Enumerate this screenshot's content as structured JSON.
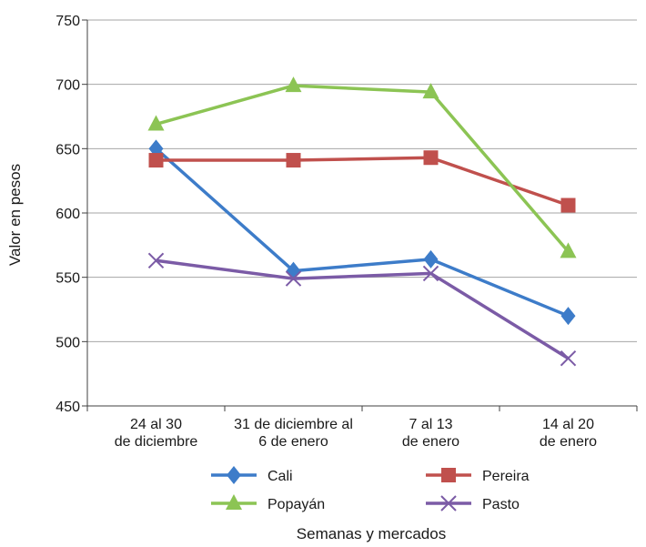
{
  "chart_data": {
    "type": "line",
    "title": "",
    "xlabel": "Semanas y mercados",
    "ylabel": "Valor en pesos",
    "ylim": [
      450,
      750
    ],
    "yticks": [
      "450",
      "500",
      "550",
      "600",
      "650",
      "700",
      "750"
    ],
    "grid": true,
    "legend_position": "bottom",
    "categories": [
      [
        "24 al 30",
        "de diciembre"
      ],
      [
        "31 de diciembre al",
        "6 de enero"
      ],
      [
        "7 al 13",
        "de enero"
      ],
      [
        "14 al 20",
        "de enero"
      ]
    ],
    "series": [
      {
        "name": "Cali",
        "color": "#3D7CC9",
        "marker": "diamond",
        "values": [
          650,
          555,
          564,
          520
        ]
      },
      {
        "name": "Pereira",
        "color": "#C0504D",
        "marker": "square",
        "values": [
          641,
          641,
          643,
          606
        ]
      },
      {
        "name": "Popayán",
        "color": "#8CC454",
        "marker": "triangle",
        "values": [
          669,
          699,
          694,
          570
        ]
      },
      {
        "name": "Pasto",
        "color": "#7B5BA6",
        "marker": "x",
        "values": [
          563,
          549,
          553,
          487
        ]
      }
    ]
  }
}
